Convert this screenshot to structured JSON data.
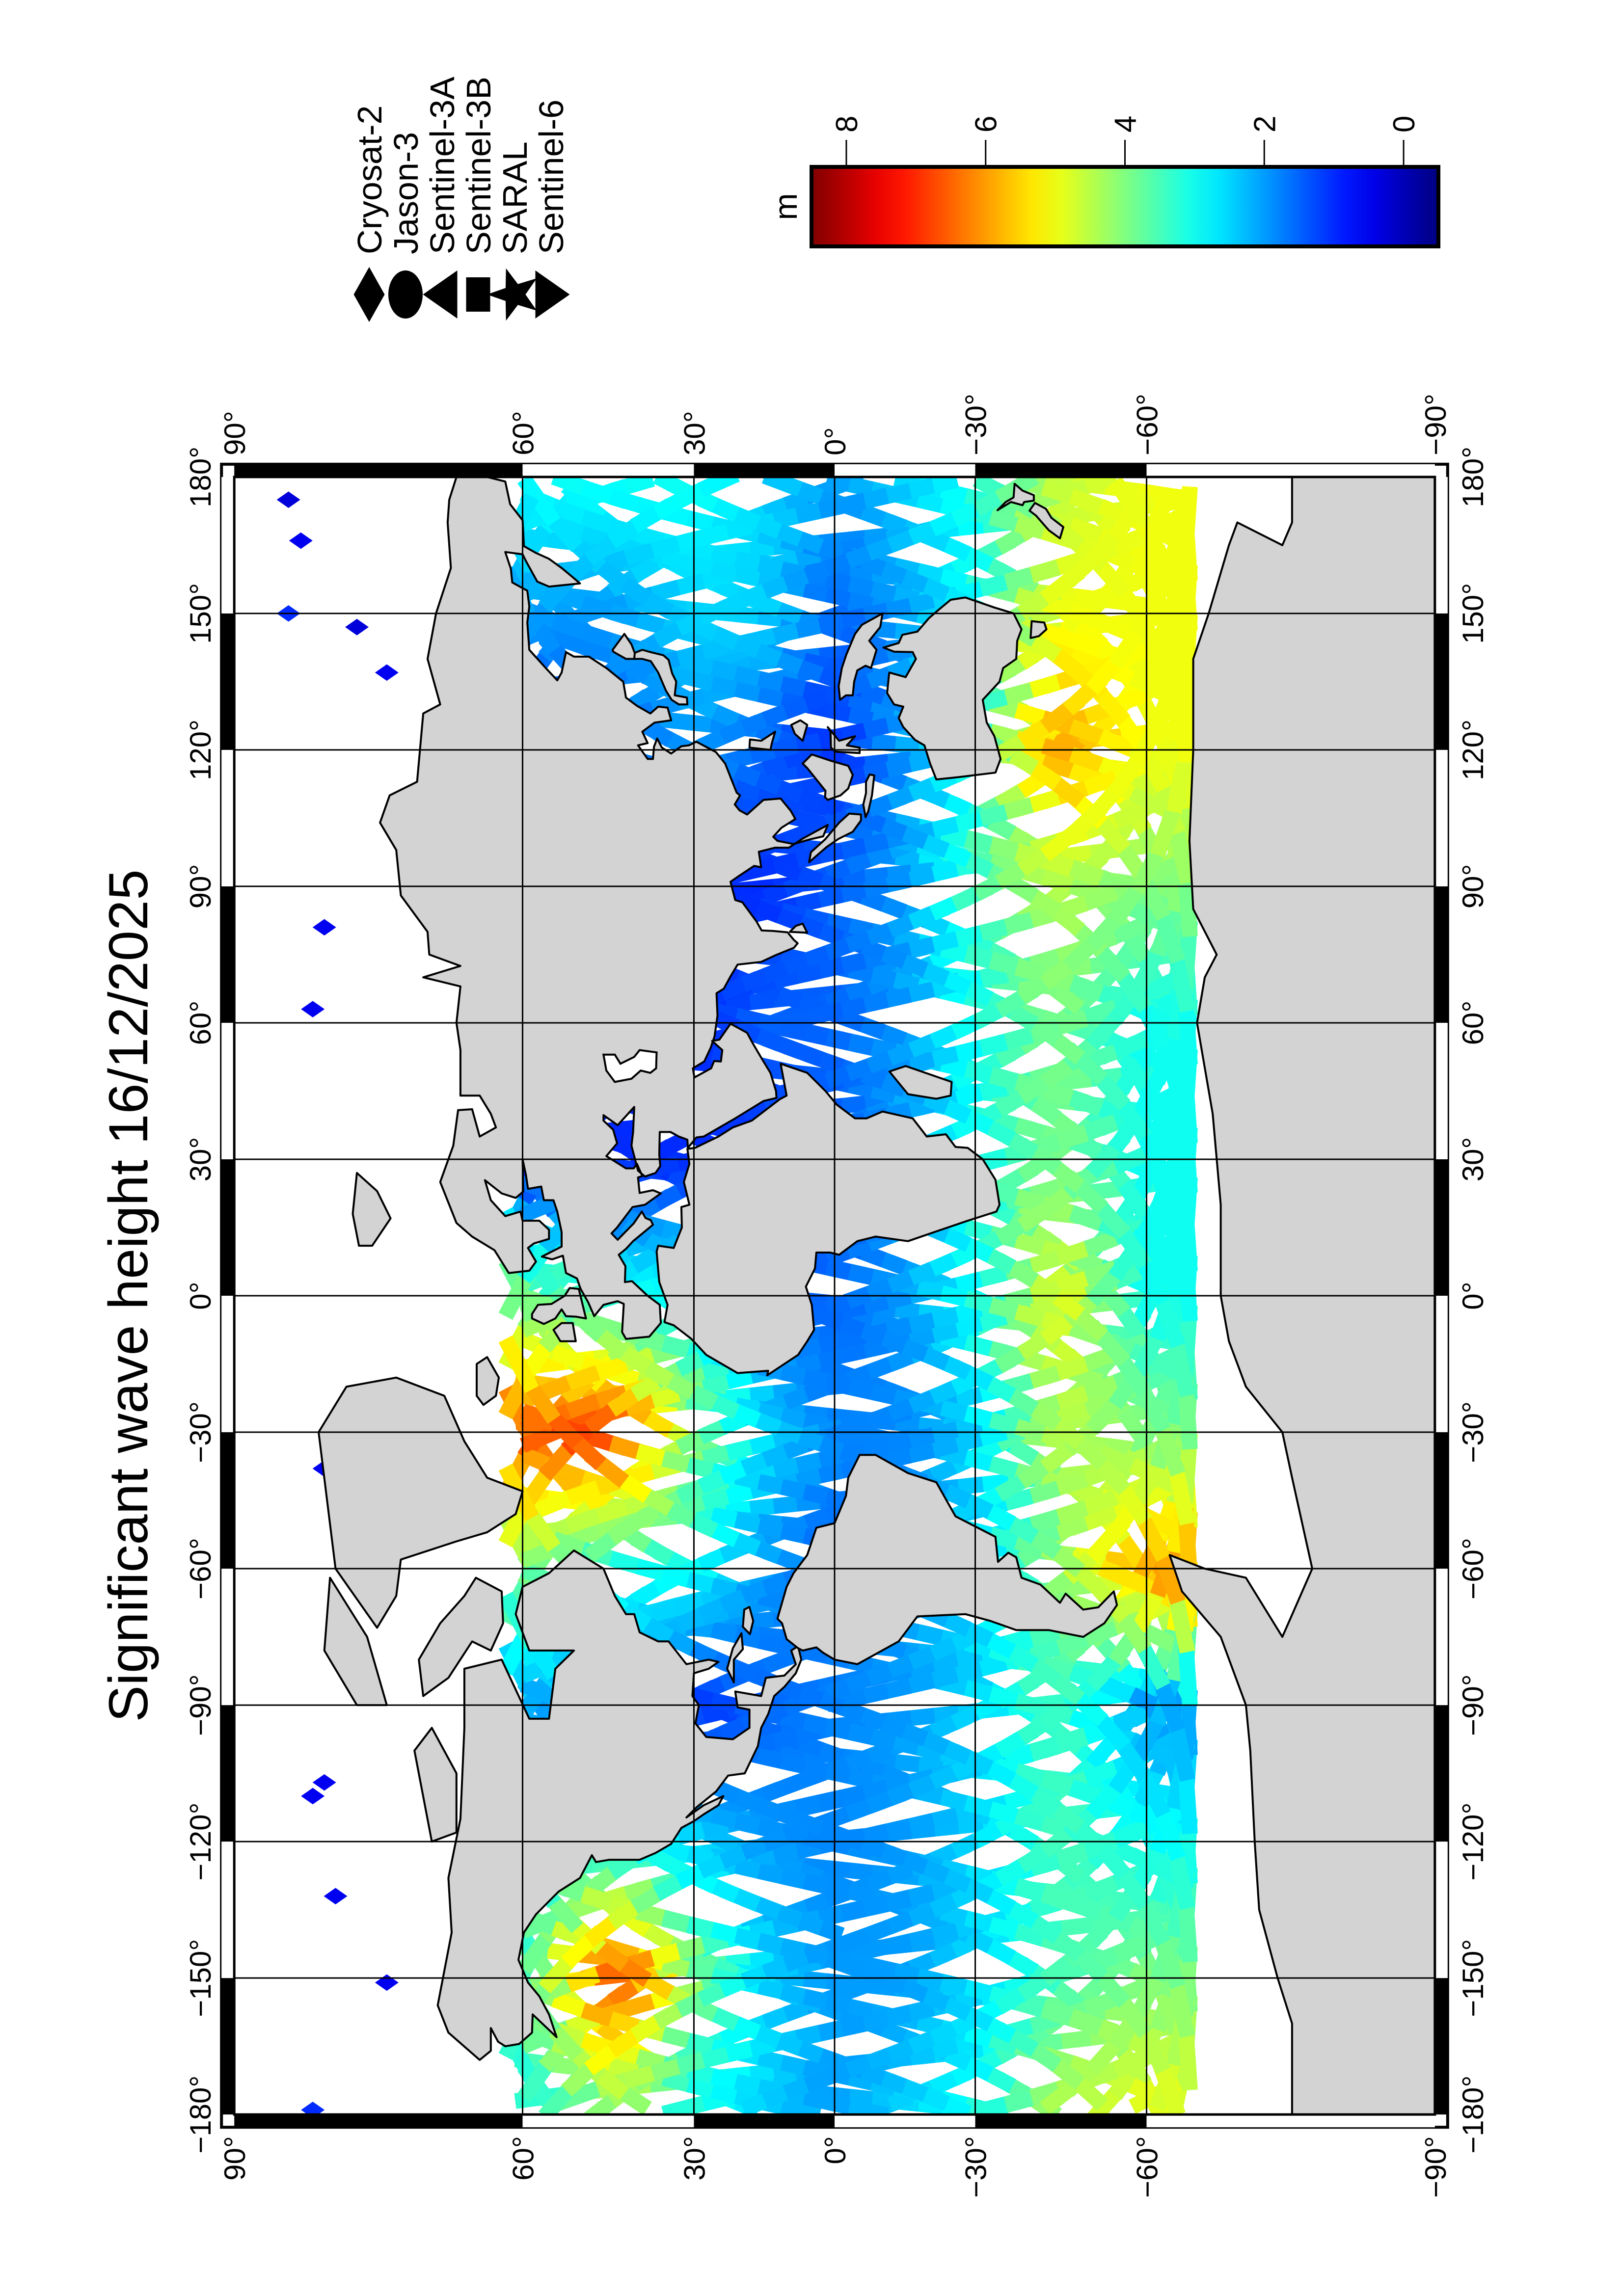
{
  "title": "Significant wave height 16/12/2025",
  "legend": {
    "items": [
      {
        "name": "Cryosat-2",
        "marker": "diamond"
      },
      {
        "name": "Jason-3",
        "marker": "circle"
      },
      {
        "name": "Sentinel-3A",
        "marker": "triangle-left"
      },
      {
        "name": "Sentinel-3B",
        "marker": "square"
      },
      {
        "name": "SARAL",
        "marker": "star"
      },
      {
        "name": "Sentinel-6",
        "marker": "triangle-right"
      }
    ]
  },
  "colorbar": {
    "label": "m",
    "colormap": "jet",
    "range": [
      -0.5,
      8.5
    ],
    "ticks": [
      0,
      2,
      4,
      6,
      8
    ],
    "tick_labels": [
      "0",
      "2",
      "4",
      "6",
      "8"
    ]
  },
  "axes": {
    "projection": "Miller cylindrical",
    "lon_range": [
      -180,
      180
    ],
    "lat_range": [
      -90,
      90
    ],
    "grid": true,
    "lon_ticks": [
      -180,
      -150,
      -120,
      -90,
      -60,
      -30,
      0,
      30,
      60,
      90,
      120,
      150,
      180
    ],
    "lon_tick_labels": [
      "−180°",
      "−150°",
      "−120°",
      "−90°",
      "−60°",
      "−30°",
      "0°",
      "30°",
      "60°",
      "90°",
      "120°",
      "150°",
      "180°"
    ],
    "lat_ticks": [
      90,
      60,
      30,
      0,
      -30,
      -60,
      -90
    ],
    "lat_tick_labels": [
      "90°",
      "60°",
      "30°",
      "0°",
      "−30°",
      "−60°",
      "−90°"
    ]
  },
  "colors": {
    "land": "#d3d3d3",
    "coastline": "#000000",
    "ocean": "#ffffff"
  },
  "map_data": {
    "variable": "significant wave height (m)",
    "hs_field": {
      "lats": [
        60,
        45,
        30,
        15,
        0,
        -15,
        -30,
        -45,
        -60
      ],
      "lons": [
        -180,
        -150,
        -120,
        -90,
        -60,
        -30,
        0,
        30,
        60,
        90,
        120,
        150,
        180
      ],
      "values": [
        [
          3.0,
          3.5,
          3.0,
          2.0,
          4.0,
          6.5,
          4.0,
          1.0,
          1.0,
          1.0,
          1.0,
          2.0,
          3.0
        ],
        [
          4.0,
          7.0,
          3.0,
          2.0,
          3.0,
          7.0,
          3.0,
          1.0,
          1.0,
          1.0,
          1.5,
          2.0,
          3.0
        ],
        [
          3.0,
          4.0,
          2.5,
          1.0,
          3.0,
          4.0,
          3.0,
          1.0,
          1.0,
          1.0,
          2.0,
          2.5,
          3.0
        ],
        [
          2.5,
          2.5,
          2.0,
          1.5,
          2.0,
          2.5,
          1.5,
          1.0,
          1.5,
          1.0,
          1.5,
          2.5,
          2.5
        ],
        [
          2.0,
          2.0,
          1.8,
          1.8,
          1.5,
          1.8,
          1.5,
          1.5,
          1.5,
          1.5,
          1.0,
          1.5,
          2.0
        ],
        [
          2.5,
          2.0,
          2.0,
          2.0,
          2.0,
          1.8,
          2.0,
          2.0,
          2.0,
          2.0,
          2.0,
          2.0,
          2.5
        ],
        [
          3.0,
          2.5,
          2.5,
          2.5,
          2.5,
          2.5,
          3.0,
          3.0,
          3.0,
          3.5,
          3.0,
          3.0,
          3.0
        ],
        [
          4.5,
          3.5,
          3.5,
          3.5,
          4.0,
          4.5,
          5.0,
          4.0,
          4.0,
          4.5,
          6.0,
          5.0,
          4.5
        ],
        [
          5.0,
          4.0,
          3.0,
          2.0,
          6.0,
          4.0,
          3.0,
          3.0,
          3.0,
          4.0,
          5.0,
          5.0,
          5.0
        ]
      ]
    },
    "polar_points": [
      {
        "sat": "Cryosat-2",
        "lon": -179,
        "lat": 84,
        "hs": 1.0
      },
      {
        "sat": "Cryosat-2",
        "lon": -151,
        "lat": 77,
        "hs": 0.5
      },
      {
        "sat": "Cryosat-2",
        "lon": -132,
        "lat": 82,
        "hs": 0.5
      },
      {
        "sat": "Cryosat-2",
        "lon": -110,
        "lat": 84,
        "hs": 0.5
      },
      {
        "sat": "Cryosat-2",
        "lon": -107,
        "lat": 83,
        "hs": 0.5
      },
      {
        "sat": "Cryosat-2",
        "lon": -38,
        "lat": 83,
        "hs": 0.5
      },
      {
        "sat": "Cryosat-2",
        "lon": 63,
        "lat": 84,
        "hs": 0.5
      },
      {
        "sat": "Cryosat-2",
        "lon": 81,
        "lat": 83,
        "hs": 0.5
      },
      {
        "sat": "Cryosat-2",
        "lon": 137,
        "lat": 77,
        "hs": 0.5
      },
      {
        "sat": "Cryosat-2",
        "lon": 147,
        "lat": 80,
        "hs": 0.3
      },
      {
        "sat": "Cryosat-2",
        "lon": 150,
        "lat": 86,
        "hs": 1.0
      },
      {
        "sat": "Cryosat-2",
        "lon": 166,
        "lat": 85,
        "hs": 0.5
      },
      {
        "sat": "Cryosat-2",
        "lon": 175,
        "lat": 86,
        "hs": 0.3
      }
    ]
  }
}
